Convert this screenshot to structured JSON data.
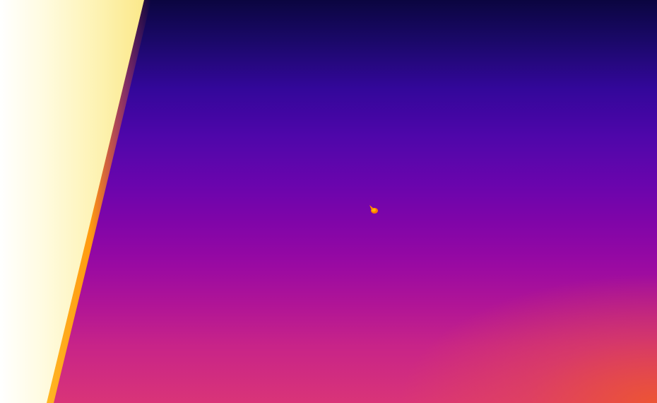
{
  "image": {
    "kind": "thermal-camera-frame",
    "palette": "inferno-like",
    "colors": {
      "sky_top": "#0b0540",
      "sky_mid": "#6a05ad",
      "sky_bottom": "#d93478",
      "corner_glow": "#f05a28",
      "hot_surface": "#fff6c8",
      "hot_edge": "#ffb000",
      "target": "#ff9a00"
    }
  }
}
